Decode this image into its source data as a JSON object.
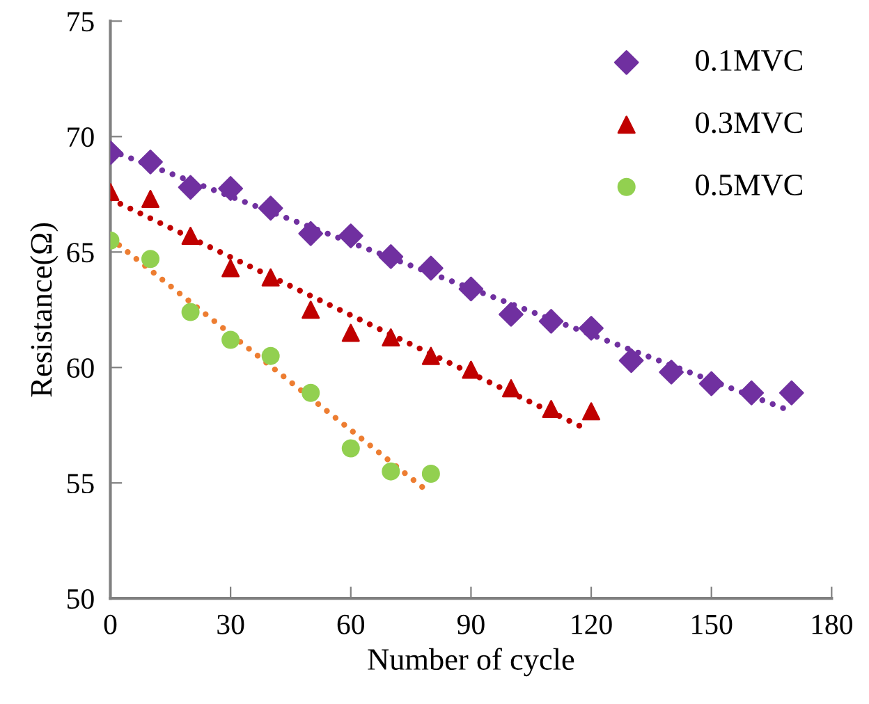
{
  "chart_data": {
    "type": "scatter",
    "xlabel": "Number of cycle",
    "ylabel": "Resistance(Ω)",
    "xlim": [
      0,
      180
    ],
    "ylim": [
      50,
      75
    ],
    "xticks": [
      0,
      30,
      60,
      90,
      120,
      150,
      180
    ],
    "yticks": [
      50,
      55,
      60,
      65,
      70,
      75
    ],
    "grid": false,
    "legend": "top right",
    "series": [
      {
        "name": "0.1MVC",
        "marker": "diamond",
        "color": "#7030a0",
        "x": [
          0,
          10,
          20,
          30,
          40,
          50,
          60,
          70,
          80,
          90,
          100,
          110,
          120,
          130,
          140,
          150,
          160,
          170
        ],
        "values": [
          69.3,
          68.9,
          67.8,
          67.75,
          66.9,
          65.8,
          65.7,
          64.8,
          64.3,
          63.4,
          62.3,
          62.0,
          61.7,
          60.3,
          59.8,
          59.3,
          58.9,
          58.9
        ]
      },
      {
        "name": "0.3MVC",
        "marker": "triangle",
        "color": "#c00000",
        "x": [
          0,
          10,
          20,
          30,
          40,
          50,
          60,
          70,
          80,
          90,
          100,
          110,
          120
        ],
        "values": [
          67.6,
          67.3,
          65.7,
          64.3,
          63.9,
          62.5,
          61.5,
          61.3,
          60.5,
          59.9,
          59.1,
          58.2,
          58.1
        ]
      },
      {
        "name": "0.5MVC",
        "marker": "circle",
        "color": "#92d050",
        "x": [
          0,
          10,
          20,
          30,
          40,
          50,
          60,
          70,
          80
        ],
        "values": [
          65.5,
          64.7,
          62.4,
          61.2,
          60.5,
          58.9,
          56.5,
          55.5,
          55.4
        ]
      },
      {
        "type": "line",
        "line_style": "dotted",
        "color": "#7030a0",
        "x": [
          0,
          170
        ],
        "values": [
          69.4,
          58.1
        ]
      },
      {
        "type": "line",
        "line_style": "dotted",
        "color": "#c00000",
        "x": [
          0,
          118
        ],
        "values": [
          67.3,
          57.4
        ]
      },
      {
        "type": "line",
        "line_style": "dotted",
        "color": "#ed7d31",
        "x": [
          0,
          78
        ],
        "values": [
          65.6,
          54.8
        ]
      }
    ]
  }
}
